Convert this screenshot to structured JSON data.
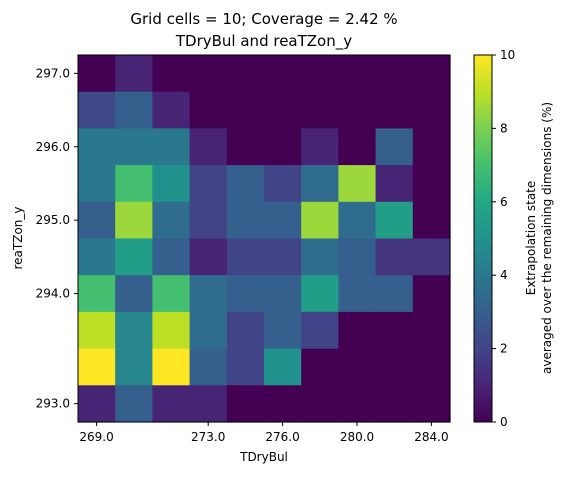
{
  "chart_data": {
    "type": "heatmap",
    "title": "Grid cells = 10; Coverage = 2.42 %",
    "subtitle": "TDryBul and reaTZon_y",
    "xlabel": "TDryBul",
    "ylabel": "reaTZon_y",
    "colorbar_label_line1": "Extrapolation state",
    "colorbar_label_line2": "averaged over the remaining dimensions (%)",
    "x_ticks": [
      "269.0",
      "273.0",
      "276.0",
      "280.0",
      "284.0"
    ],
    "y_ticks": [
      "297.0",
      "296.0",
      "295.0",
      "294.0",
      "293.0"
    ],
    "colorbar_ticks": [
      "10",
      "8",
      "6",
      "4",
      "2",
      "0"
    ],
    "colorbar_range": [
      0,
      10
    ],
    "colormap": "viridis",
    "grid": false,
    "values": [
      [
        0,
        1.0,
        0,
        0,
        0,
        0,
        0,
        0,
        0,
        0
      ],
      [
        2.2,
        3.0,
        1.0,
        0,
        0,
        0,
        0,
        0,
        0,
        0
      ],
      [
        4.0,
        4.0,
        4.0,
        1.0,
        0,
        0,
        1.0,
        0,
        3.0,
        0
      ],
      [
        4.0,
        7.0,
        5.0,
        2.0,
        3.0,
        2.0,
        3.5,
        8.5,
        1.0,
        0
      ],
      [
        3.0,
        8.5,
        3.5,
        2.0,
        3.0,
        3.0,
        8.5,
        3.5,
        5.5,
        0
      ],
      [
        4.0,
        5.5,
        3.0,
        1.0,
        2.0,
        2.0,
        3.5,
        3.0,
        1.5,
        1.5
      ],
      [
        7.0,
        3.0,
        7.0,
        3.5,
        3.0,
        3.0,
        5.5,
        3.0,
        3.0,
        0
      ],
      [
        9.0,
        4.5,
        9.0,
        3.5,
        2.0,
        3.0,
        2.0,
        0,
        0,
        0
      ],
      [
        10.0,
        4.5,
        10.0,
        3.0,
        2.0,
        5.0,
        0,
        0,
        0,
        0
      ],
      [
        1.0,
        3.0,
        1.0,
        1.0,
        0,
        0,
        0,
        0,
        0,
        0
      ]
    ]
  }
}
